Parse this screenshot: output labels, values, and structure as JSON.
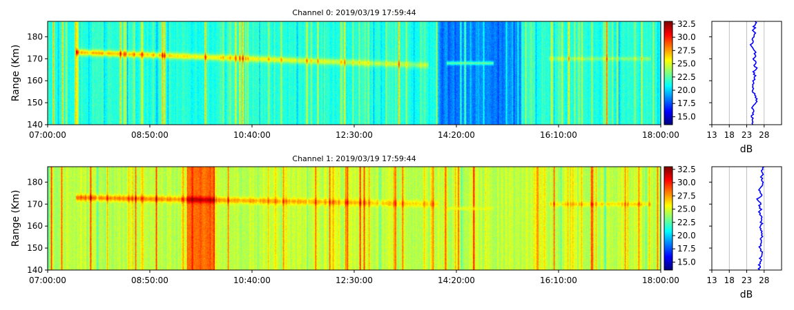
{
  "chart_data": [
    {
      "type": "heatmap",
      "title": "Channel 0: 2019/03/19 17:59:44",
      "ylabel": "Range (Km)",
      "xlim": [
        "07:00:00",
        "18:00:00"
      ],
      "ylim": [
        140,
        187
      ],
      "xticks": [
        "07:00:00",
        "08:50:00",
        "10:40:00",
        "12:30:00",
        "14:20:00",
        "16:10:00",
        "18:00:00"
      ],
      "yticks": [
        140,
        150,
        160,
        170,
        180
      ],
      "colorbar": {
        "range": [
          13.5,
          33
        ],
        "ticks": [
          "15.0",
          "17.5",
          "20.0",
          "22.5",
          "25.0",
          "27.5",
          "30.0",
          "32.5"
        ],
        "colormap": "jet"
      },
      "approx_features": {
        "background_db": 21.5,
        "echo_band": {
          "start_range_km": 173,
          "end_range_km": 167,
          "peak_db": 27,
          "from": "07:30:00",
          "to": "13:50:00"
        },
        "weak_band": {
          "range_km": 168,
          "from": "14:10:00",
          "to": "15:00:00",
          "db": 22
        },
        "late_band": {
          "range_km": 170,
          "from": "16:00:00",
          "to": "17:50:00",
          "db": 23
        },
        "low_interval": {
          "from": "14:00:00",
          "to": "15:30:00",
          "db": 18.5
        }
      },
      "profile": {
        "xlabel": "dB",
        "xlim": [
          13,
          33
        ],
        "xticks": [
          13,
          18,
          23,
          28
        ],
        "mean_db": 25,
        "line_color": "#0000ff"
      }
    },
    {
      "type": "heatmap",
      "title": "Channel 1: 2019/03/19 17:59:44",
      "ylabel": "Range (Km)",
      "xlim": [
        "07:00:00",
        "18:00:00"
      ],
      "ylim": [
        140,
        187
      ],
      "xticks": [
        "07:00:00",
        "08:50:00",
        "10:40:00",
        "12:30:00",
        "14:20:00",
        "16:10:00",
        "18:00:00"
      ],
      "yticks": [
        140,
        150,
        160,
        170,
        180
      ],
      "colorbar": {
        "range": [
          13.5,
          33
        ],
        "ticks": [
          "15.0",
          "17.5",
          "20.0",
          "22.5",
          "25.0",
          "27.5",
          "30.0",
          "32.5"
        ],
        "colormap": "jet"
      },
      "approx_features": {
        "background_db": 24.5,
        "echo_band": {
          "start_range_km": 173,
          "end_range_km": 170,
          "peak_db": 28.5,
          "from": "07:30:00",
          "to": "14:00:00"
        },
        "weak_band": {
          "range_km": 168,
          "from": "14:10:00",
          "to": "15:00:00",
          "db": 24
        },
        "late_band": {
          "range_km": 170,
          "from": "16:00:00",
          "to": "17:50:00",
          "db": 25
        },
        "hot_interval": {
          "from": "09:30:00",
          "to": "10:00:00",
          "db": 28.5
        }
      },
      "profile": {
        "xlabel": "dB",
        "xlim": [
          13,
          33
        ],
        "xticks": [
          13,
          18,
          23,
          28
        ],
        "mean_db": 27,
        "line_color": "#0000ff"
      }
    }
  ]
}
